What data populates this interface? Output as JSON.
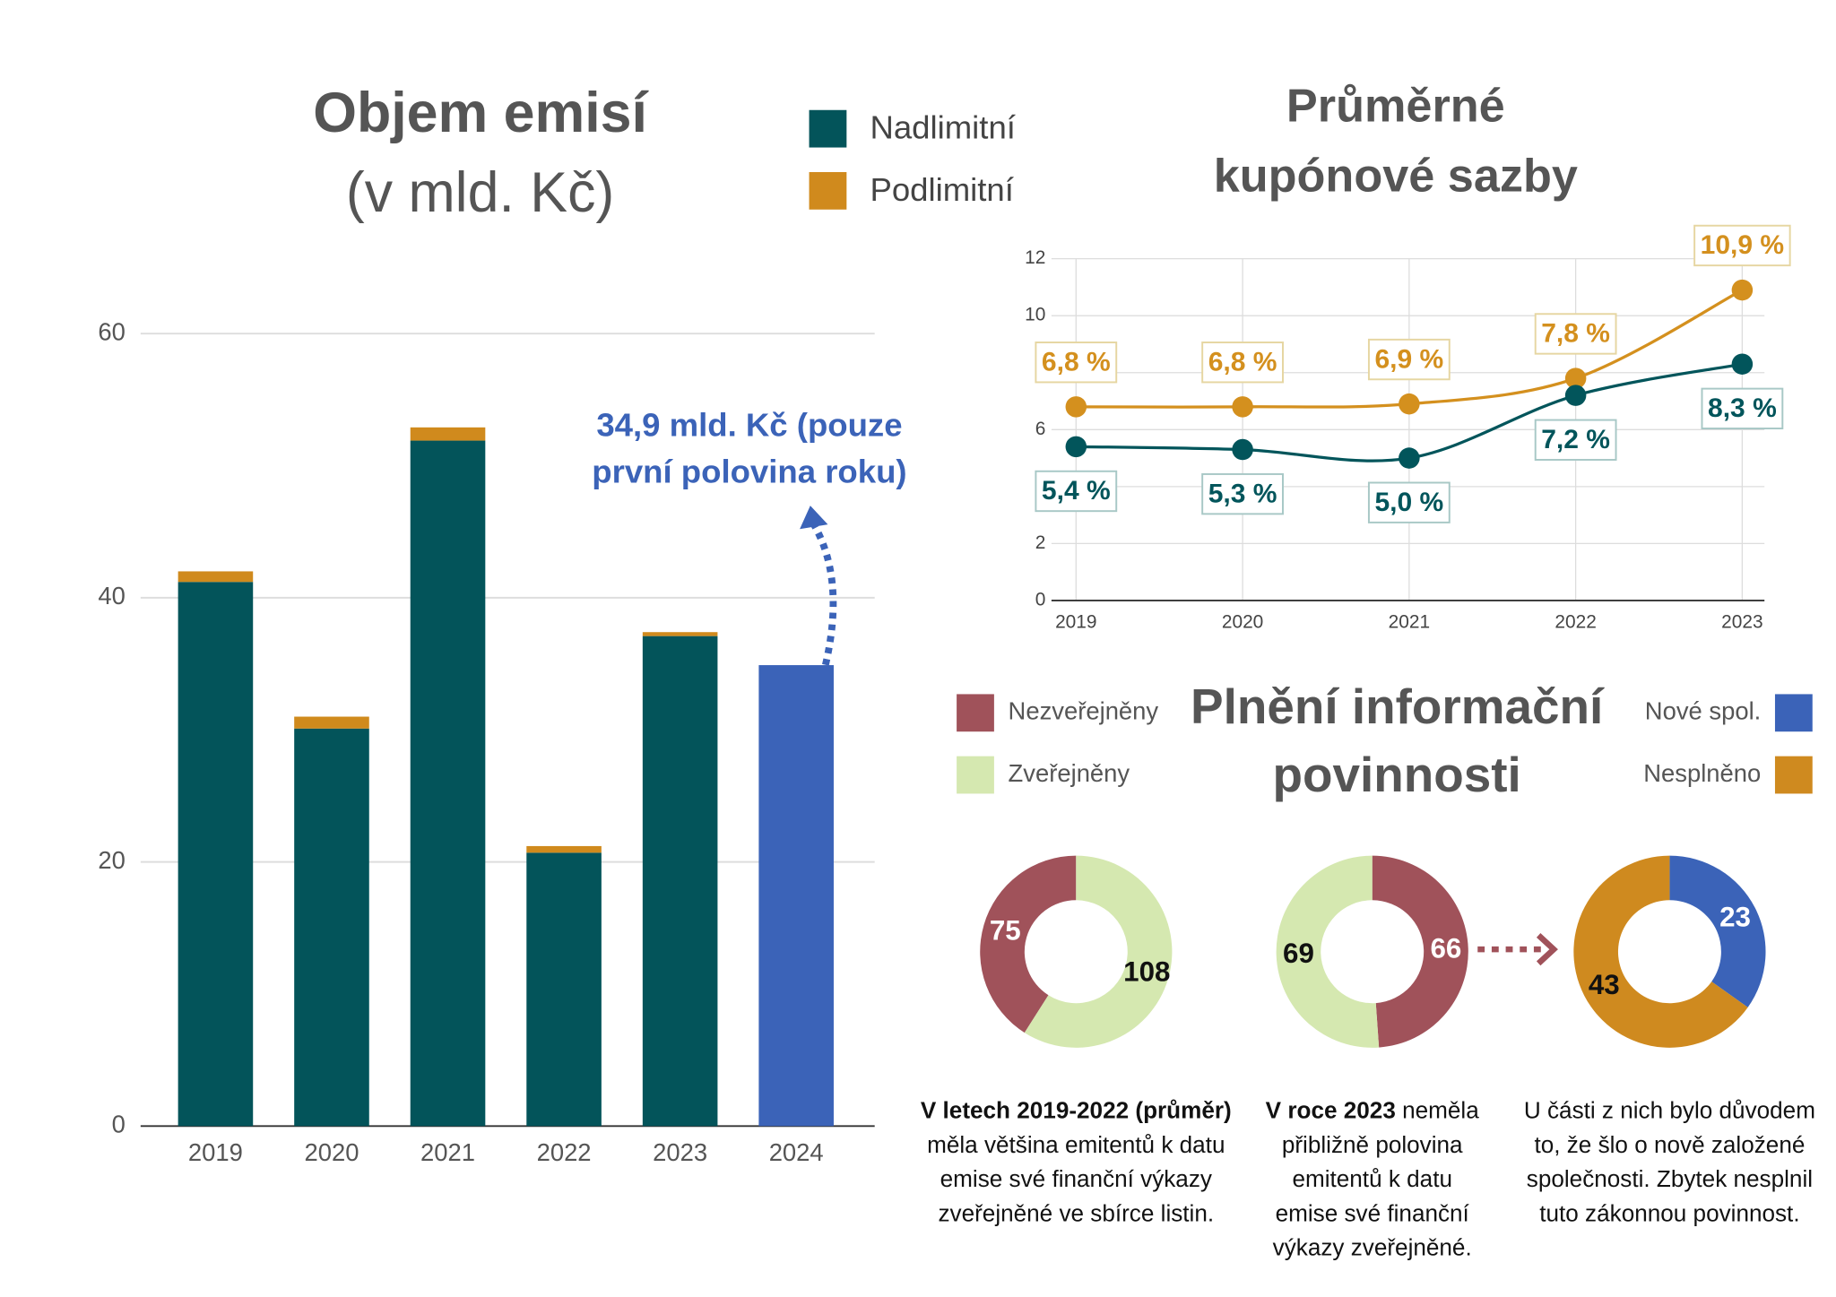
{
  "chart_data": [
    {
      "type": "bar",
      "stacked": true,
      "title": "Objem emisí",
      "subtitle": "(v mld. Kč)",
      "categories": [
        "2019",
        "2020",
        "2021",
        "2022",
        "2023",
        "2024"
      ],
      "series": [
        {
          "name": "Nadlimitní",
          "color": "#03545a",
          "values": [
            41.2,
            30.1,
            51.9,
            20.7,
            37.1,
            34.9
          ]
        },
        {
          "name": "Podlimitní",
          "color": "#d08a1d",
          "values": [
            0.8,
            0.9,
            1.0,
            0.5,
            0.3,
            null
          ]
        }
      ],
      "annotation": {
        "lines": [
          "34,9 mld. Kč (pouze",
          "první polovina roku)"
        ],
        "category": "2024",
        "color": "#3b63b8"
      },
      "ylim": [
        0,
        60
      ],
      "yticks": [
        0,
        20,
        40,
        60
      ],
      "grid": true,
      "legend": "top-right"
    },
    {
      "type": "line",
      "title": [
        "Průměrné",
        "kupónové sazby"
      ],
      "categories": [
        "2019",
        "2020",
        "2021",
        "2022",
        "2023"
      ],
      "series": [
        {
          "color": "#d4901e",
          "values": [
            6.8,
            6.8,
            6.9,
            7.8,
            10.9
          ],
          "value_labels": [
            "6,8 %",
            "6,8 %",
            "6,9 %",
            "7,8 %",
            "10,9 %"
          ],
          "label_position": "above"
        },
        {
          "color": "#02555b",
          "values": [
            5.4,
            5.3,
            5.0,
            7.2,
            8.3
          ],
          "value_labels": [
            "5,4 %",
            "5,3 %",
            "5,0 %",
            "7,2 %",
            "8,3 %"
          ],
          "label_position": "below"
        }
      ],
      "ylim": [
        0,
        12
      ],
      "yticks": [
        0,
        2,
        4,
        6,
        8,
        10,
        12
      ],
      "grid": true,
      "smooth": true
    },
    {
      "type": "donut",
      "title": [
        "Plnění informační",
        "povinnosti"
      ],
      "legend": "left",
      "series": [
        {
          "name": "Nezveřejněny",
          "color": "#a0525a",
          "label_color": "#ffffff",
          "values": [
            75,
            66
          ]
        },
        {
          "name": "Zveřejněny",
          "color": "#d5e8b0",
          "label_color": "#111111",
          "values": [
            108,
            69
          ]
        }
      ],
      "directions": [
        "counterclockwise",
        "clockwise"
      ],
      "captions": [
        [
          [
            {
              "text": "V letech 2019-2022 (průměr)",
              "bold": true
            }
          ],
          [
            {
              "text": "měla většina emitentů k datu"
            }
          ],
          [
            {
              "text": "emise své finanční výkazy"
            }
          ],
          [
            {
              "text": "zveřejněné ve sbírce listin."
            }
          ]
        ],
        [
          [
            {
              "text": "V roce 2023 ",
              "bold": true
            },
            {
              "text": "neměla"
            }
          ],
          [
            {
              "text": "přibližně polovina"
            }
          ],
          [
            {
              "text": "emitentů k datu"
            }
          ],
          [
            {
              "text": "emise své finanční"
            }
          ],
          [
            {
              "text": "výkazy zveřejněné."
            }
          ]
        ]
      ]
    },
    {
      "type": "donut",
      "legend": "right",
      "series": [
        {
          "name": "Nové spol.",
          "color": "#3b63b8",
          "label_color": "#ffffff",
          "values": [
            23
          ]
        },
        {
          "name": "Nesplněno",
          "color": "#cf8a1f",
          "label_color": "#111111",
          "values": [
            43
          ]
        }
      ],
      "directions": [
        "clockwise"
      ],
      "captions": [
        [
          [
            {
              "text": "U části z nich bylo důvodem"
            }
          ],
          [
            {
              "text": "to, že šlo o nově založené"
            }
          ],
          [
            {
              "text": "společnosti. Zbytek nesplnil"
            }
          ],
          [
            {
              "text": "tuto zákonnou povinnost."
            }
          ]
        ]
      ]
    }
  ]
}
